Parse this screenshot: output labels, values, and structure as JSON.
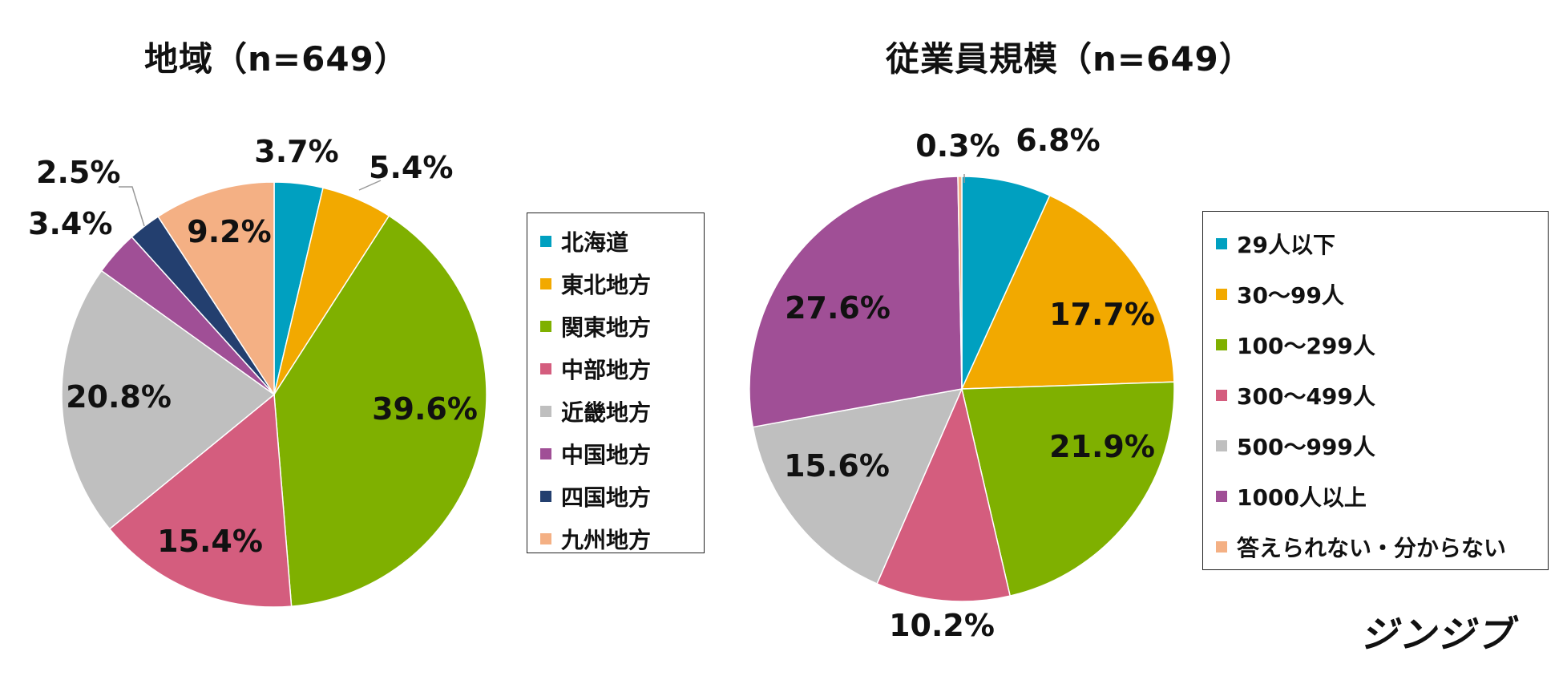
{
  "logo_text": "ジンジブ",
  "chart_data": [
    {
      "type": "pie",
      "title": "地域（n=649）",
      "categories": [
        "北海道",
        "東北地方",
        "関東地方",
        "中部地方",
        "近畿地方",
        "中国地方",
        "四国地方",
        "九州地方"
      ],
      "values": [
        3.7,
        5.4,
        39.6,
        15.4,
        20.8,
        3.4,
        2.5,
        9.2
      ],
      "labels": [
        "3.7%",
        "5.4%",
        "39.6%",
        "15.4%",
        "20.8%",
        "3.4%",
        "2.5%",
        "9.2%"
      ],
      "colors": [
        "#00A0C0",
        "#F2A900",
        "#7FB000",
        "#D45D7E",
        "#BFBFBF",
        "#A04F96",
        "#233F6F",
        "#F4B084"
      ],
      "legend_position": "right"
    },
    {
      "type": "pie",
      "title": "従業員規模（n=649）",
      "categories": [
        "29人以下",
        "30〜99人",
        "100〜299人",
        "300〜499人",
        "500〜999人",
        "1000人以上",
        "答えられない・分からない"
      ],
      "values": [
        6.8,
        17.7,
        21.9,
        10.2,
        15.6,
        27.6,
        0.3
      ],
      "labels": [
        "6.8%",
        "17.7%",
        "21.9%",
        "10.2%",
        "15.6%",
        "27.6%",
        "0.3%"
      ],
      "colors": [
        "#00A0C0",
        "#F2A900",
        "#7FB000",
        "#D45D7E",
        "#BFBFBF",
        "#A04F96",
        "#F4B084"
      ],
      "legend_position": "right"
    }
  ]
}
